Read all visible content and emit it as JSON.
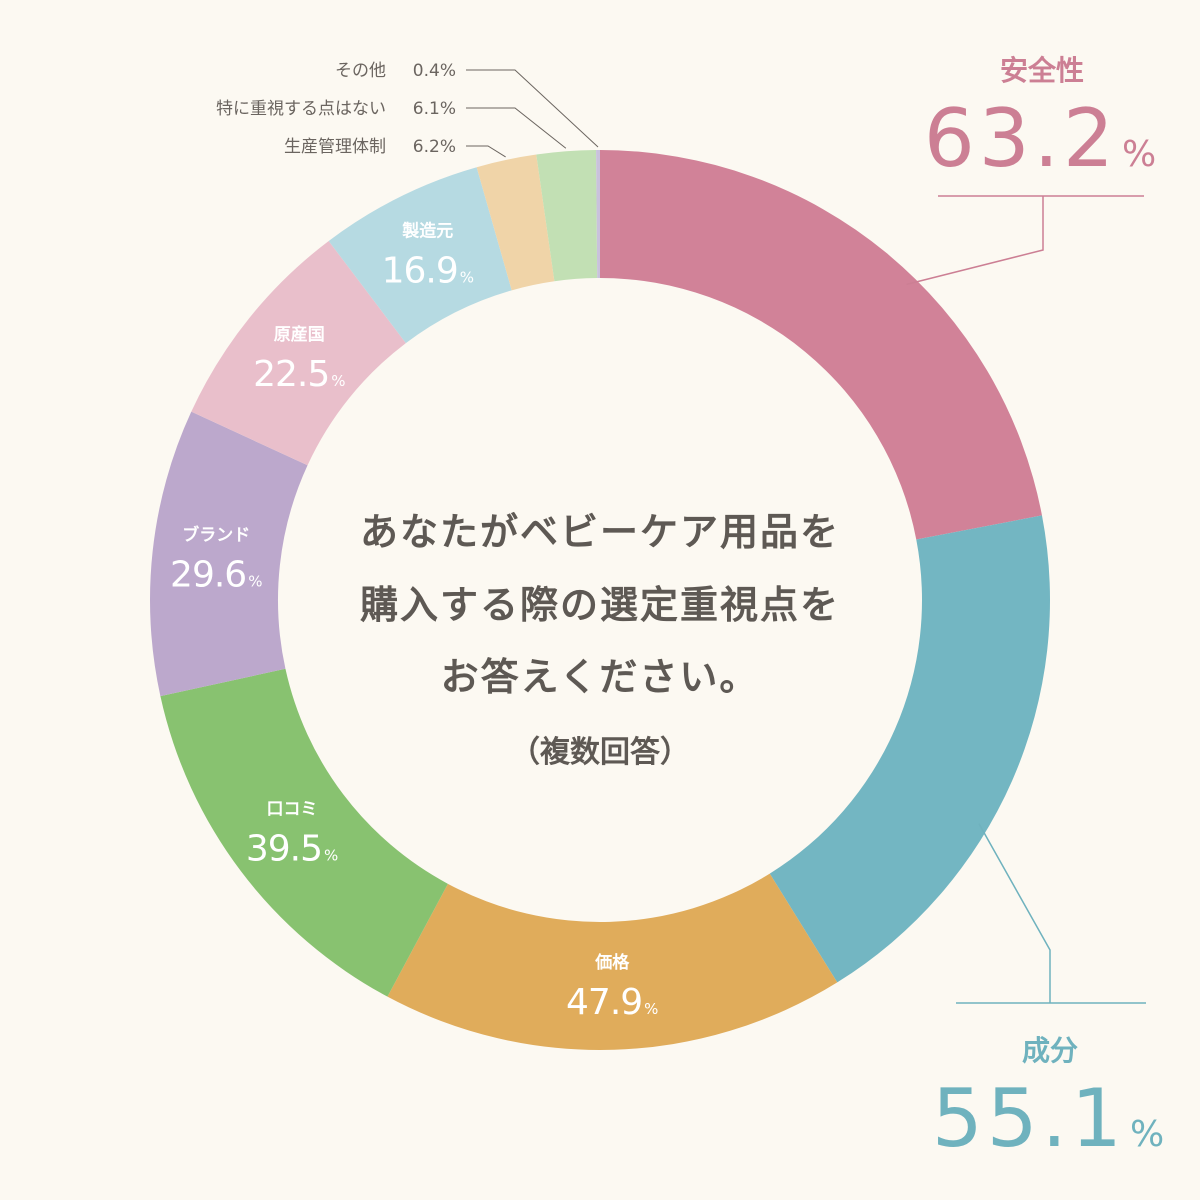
{
  "chart_data": {
    "type": "pie",
    "title_lines": [
      "あなたがベビーケア用品を",
      "購入する際の選定重視点を",
      "お答えください。"
    ],
    "note": "（複数回答）",
    "unit": "%",
    "categories": [
      "安全性",
      "成分",
      "価格",
      "口コミ",
      "ブランド",
      "原産国",
      "製造元",
      "生産管理体制",
      "特に重視する点はない",
      "その他"
    ],
    "values": [
      63.2,
      55.1,
      47.9,
      39.5,
      29.6,
      22.5,
      16.9,
      6.2,
      6.1,
      0.4
    ],
    "value_labels": [
      "63.2",
      "55.1",
      "47.9",
      "39.5",
      "29.6",
      "22.5",
      "16.9",
      "6.2",
      "6.1",
      "0.4"
    ],
    "colors": [
      "#d18298",
      "#73b6c2",
      "#e0ac5b",
      "#88c270",
      "#bca8cc",
      "#e9bfcb",
      "#b6dae2",
      "#f0d4a8",
      "#c2e0b4",
      "#c9c2dc"
    ]
  }
}
